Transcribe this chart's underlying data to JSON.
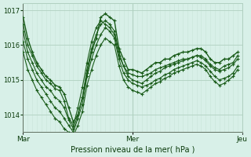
{
  "title": "",
  "xlabel": "Pression niveau de la mer( hPa )",
  "background_color": "#d8f0e8",
  "plot_bg_color": "#d8f0e8",
  "grid_color_major": "#b0d0c0",
  "grid_color_minor": "#c8e4d8",
  "line_color": "#1a5c1a",
  "dark_line_color": "#0a3a0a",
  "ylim": [
    1013.5,
    1017.2
  ],
  "yticks": [
    1014,
    1015,
    1016,
    1017
  ],
  "day_labels": [
    "Mar",
    "Mer",
    "Jeu"
  ],
  "day_positions": [
    0,
    24,
    48
  ],
  "series": [
    [
      1016.8,
      1016.2,
      1015.8,
      1015.5,
      1015.3,
      1015.1,
      1015.0,
      1014.85,
      1014.8,
      1014.6,
      1014.2,
      1013.8,
      1014.0,
      1014.5,
      1015.2,
      1015.8,
      1016.2,
      1016.8,
      1016.9,
      1016.8,
      1016.7,
      1015.9,
      1015.6,
      1015.3,
      1015.3,
      1015.25,
      1015.2,
      1015.3,
      1015.4,
      1015.5,
      1015.5,
      1015.6,
      1015.6,
      1015.7,
      1015.75,
      1015.8,
      1015.8,
      1015.85,
      1015.9,
      1015.9,
      1015.8,
      1015.6,
      1015.5,
      1015.5,
      1015.6,
      1015.6,
      1015.7,
      1015.8
    ],
    [
      1016.6,
      1016.0,
      1015.7,
      1015.4,
      1015.2,
      1015.0,
      1014.9,
      1014.75,
      1014.7,
      1014.4,
      1013.9,
      1013.7,
      1014.2,
      1014.8,
      1015.5,
      1016.1,
      1016.5,
      1016.7,
      1016.6,
      1016.5,
      1016.3,
      1015.7,
      1015.4,
      1015.2,
      1015.15,
      1015.1,
      1015.1,
      1015.15,
      1015.2,
      1015.3,
      1015.35,
      1015.4,
      1015.45,
      1015.5,
      1015.55,
      1015.6,
      1015.6,
      1015.65,
      1015.7,
      1015.7,
      1015.6,
      1015.45,
      1015.35,
      1015.3,
      1015.4,
      1015.45,
      1015.5,
      1015.7
    ],
    [
      1016.4,
      1015.8,
      1015.5,
      1015.2,
      1015.0,
      1014.8,
      1014.7,
      1014.5,
      1014.4,
      1014.2,
      1013.85,
      1013.6,
      1014.0,
      1014.5,
      1015.3,
      1015.9,
      1016.3,
      1016.6,
      1016.7,
      1016.6,
      1016.4,
      1015.8,
      1015.4,
      1015.1,
      1015.0,
      1014.95,
      1014.9,
      1015.0,
      1015.1,
      1015.2,
      1015.25,
      1015.35,
      1015.4,
      1015.45,
      1015.5,
      1015.55,
      1015.6,
      1015.65,
      1015.7,
      1015.65,
      1015.55,
      1015.4,
      1015.3,
      1015.25,
      1015.3,
      1015.35,
      1015.45,
      1015.6
    ],
    [
      1016.1,
      1015.6,
      1015.3,
      1015.0,
      1014.8,
      1014.6,
      1014.4,
      1014.2,
      1014.1,
      1013.9,
      1013.7,
      1013.5,
      1013.9,
      1014.3,
      1015.1,
      1015.6,
      1016.0,
      1016.3,
      1016.5,
      1016.4,
      1016.2,
      1015.6,
      1015.2,
      1015.0,
      1014.9,
      1014.85,
      1014.8,
      1014.85,
      1014.9,
      1015.0,
      1015.05,
      1015.15,
      1015.2,
      1015.3,
      1015.35,
      1015.4,
      1015.45,
      1015.5,
      1015.55,
      1015.5,
      1015.4,
      1015.25,
      1015.1,
      1015.0,
      1015.05,
      1015.1,
      1015.2,
      1015.4
    ],
    [
      1015.8,
      1015.3,
      1015.0,
      1014.7,
      1014.5,
      1014.3,
      1014.1,
      1013.9,
      1013.8,
      1013.6,
      1013.5,
      1013.4,
      1013.7,
      1014.1,
      1014.85,
      1015.3,
      1015.7,
      1016.0,
      1016.2,
      1016.1,
      1016.0,
      1015.4,
      1015.0,
      1014.8,
      1014.7,
      1014.65,
      1014.6,
      1014.7,
      1014.8,
      1014.9,
      1014.95,
      1015.05,
      1015.1,
      1015.2,
      1015.25,
      1015.3,
      1015.35,
      1015.4,
      1015.45,
      1015.4,
      1015.3,
      1015.1,
      1014.95,
      1014.85,
      1014.9,
      1015.0,
      1015.1,
      1015.3
    ]
  ]
}
